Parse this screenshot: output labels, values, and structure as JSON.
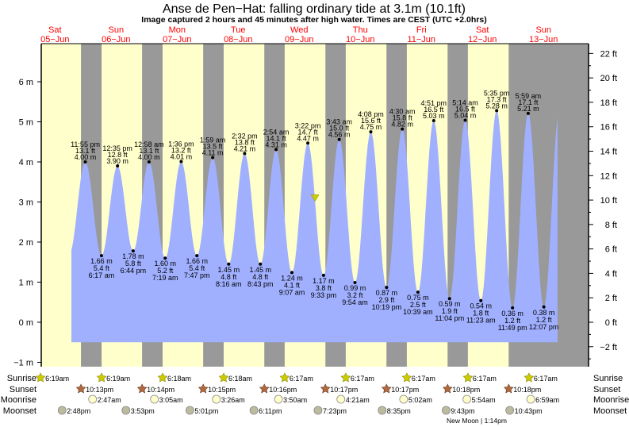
{
  "chart_data": {
    "type": "area",
    "title": "Anse de Pen−Hat: falling  ordinary tide at 3.1m (10.1ft)",
    "subtitle": "Image captured 2 hours and 45 minutes after high water. Times are CEST (UTC +2.0hrs)",
    "x_unit": "hours since Sat 05-Jun 00:00",
    "xlim": [
      6.6,
      221.8
    ],
    "ylim_m": [
      -1.3,
      6.7
    ],
    "left_ticks": [
      {
        "v": -1,
        "label": "−1 m"
      },
      {
        "v": 0,
        "label": "0 m"
      },
      {
        "v": 1,
        "label": "1 m"
      },
      {
        "v": 2,
        "label": "2 m"
      },
      {
        "v": 3,
        "label": "3 m"
      },
      {
        "v": 4,
        "label": "4 m"
      },
      {
        "v": 5,
        "label": "5 m"
      },
      {
        "v": 6,
        "label": "6 m"
      }
    ],
    "right_ticks": [
      {
        "v": -2,
        "label": "−2 ft"
      },
      {
        "v": 0,
        "label": "0 ft"
      },
      {
        "v": 2,
        "label": "2 ft"
      },
      {
        "v": 4,
        "label": "4 ft"
      },
      {
        "v": 6,
        "label": "6 ft"
      },
      {
        "v": 8,
        "label": "8 ft"
      },
      {
        "v": 10,
        "label": "10 ft"
      },
      {
        "v": 12,
        "label": "12 ft"
      },
      {
        "v": 14,
        "label": "14 ft"
      },
      {
        "v": 16,
        "label": "16 ft"
      },
      {
        "v": 18,
        "label": "18 ft"
      },
      {
        "v": 20,
        "label": "20 ft"
      },
      {
        "v": 22,
        "label": "22 ft"
      }
    ],
    "days": [
      {
        "dow": "Sat",
        "date": "05−Jun"
      },
      {
        "dow": "Sun",
        "date": "06−Jun"
      },
      {
        "dow": "Mon",
        "date": "07−Jun"
      },
      {
        "dow": "Tue",
        "date": "08−Jun"
      },
      {
        "dow": "Wed",
        "date": "09−Jun"
      },
      {
        "dow": "Thu",
        "date": "10−Jun"
      },
      {
        "dow": "Fri",
        "date": "11−Jun"
      },
      {
        "dow": "Sat",
        "date": "12−Jun"
      },
      {
        "dow": "Sun",
        "date": "13−Jun"
      }
    ],
    "extremes": [
      {
        "type": "high",
        "t": 23.92,
        "time": "11:55 pm",
        "m": "4.00 m",
        "ft": "13.1 ft",
        "v": 4.0
      },
      {
        "type": "low",
        "t": 30.28,
        "time": "6:17 am",
        "m": "1.66 m",
        "ft": "5.4 ft",
        "v": 1.66
      },
      {
        "type": "high",
        "t": 36.58,
        "time": "12:35 pm",
        "m": "3.90 m",
        "ft": "12.8 ft",
        "v": 3.9
      },
      {
        "type": "low",
        "t": 42.73,
        "time": "6:44 pm",
        "m": "1.78 m",
        "ft": "5.8 ft",
        "v": 1.78
      },
      {
        "type": "high",
        "t": 48.97,
        "time": "12:58 am",
        "m": "4.00 m",
        "ft": "13.1 ft",
        "v": 4.0
      },
      {
        "type": "low",
        "t": 55.32,
        "time": "7:19 am",
        "m": "1.60 m",
        "ft": "5.2 ft",
        "v": 1.6
      },
      {
        "type": "high",
        "t": 61.6,
        "time": "1:36 pm",
        "m": "4.01 m",
        "ft": "13.2 ft",
        "v": 4.01
      },
      {
        "type": "low",
        "t": 67.78,
        "time": "7:47 pm",
        "m": "1.66 m",
        "ft": "5.4 ft",
        "v": 1.66
      },
      {
        "type": "high",
        "t": 73.98,
        "time": "1:59 am",
        "m": "4.11 m",
        "ft": "13.5 ft",
        "v": 4.11
      },
      {
        "type": "low",
        "t": 80.27,
        "time": "8:16 am",
        "m": "1.45 m",
        "ft": "4.8 ft",
        "v": 1.45
      },
      {
        "type": "high",
        "t": 86.53,
        "time": "2:32 pm",
        "m": "4.21 m",
        "ft": "13.8 ft",
        "v": 4.21
      },
      {
        "type": "low",
        "t": 92.72,
        "time": "8:43 pm",
        "m": "1.45 m",
        "ft": "4.8 ft",
        "v": 1.45
      },
      {
        "type": "high",
        "t": 98.9,
        "time": "2:54 am",
        "m": "4.31 m",
        "ft": "14.1 ft",
        "v": 4.31
      },
      {
        "type": "low",
        "t": 105.12,
        "time": "9:07 am",
        "m": "1.24 m",
        "ft": "4.1 ft",
        "v": 1.24
      },
      {
        "type": "high",
        "t": 111.37,
        "time": "3:22 pm",
        "m": "4.47 m",
        "ft": "14.7 ft",
        "v": 4.47
      },
      {
        "type": "low",
        "t": 117.55,
        "time": "9:33 pm",
        "m": "1.17 m",
        "ft": "3.8 ft",
        "v": 1.17
      },
      {
        "type": "high",
        "t": 123.72,
        "time": "3:43 am",
        "m": "4.56 m",
        "ft": "15.0 ft",
        "v": 4.56
      },
      {
        "type": "low",
        "t": 129.9,
        "time": "9:54 am",
        "m": "0.99 m",
        "ft": "3.2 ft",
        "v": 0.99
      },
      {
        "type": "high",
        "t": 136.13,
        "time": "4:08 pm",
        "m": "4.75 m",
        "ft": "15.6 ft",
        "v": 4.75
      },
      {
        "type": "low",
        "t": 142.32,
        "time": "10:19 pm",
        "m": "0.87 m",
        "ft": "2.9 ft",
        "v": 0.87
      },
      {
        "type": "high",
        "t": 148.5,
        "time": "4:30 am",
        "m": "4.82 m",
        "ft": "15.8 ft",
        "v": 4.82
      },
      {
        "type": "low",
        "t": 154.65,
        "time": "10:39 am",
        "m": "0.75 m",
        "ft": "2.5 ft",
        "v": 0.75
      },
      {
        "type": "high",
        "t": 160.85,
        "time": "4:51 pm",
        "m": "5.03 m",
        "ft": "16.5 ft",
        "v": 5.03
      },
      {
        "type": "low",
        "t": 167.07,
        "time": "11:04 pm",
        "m": "0.59 m",
        "ft": "1.9 ft",
        "v": 0.59
      },
      {
        "type": "high",
        "t": 173.23,
        "time": "5:14 am",
        "m": "5.04 m",
        "ft": "16.5 ft",
        "v": 5.04
      },
      {
        "type": "low",
        "t": 179.38,
        "time": "11:23 am",
        "m": "0.54 m",
        "ft": "1.8 ft",
        "v": 0.54
      },
      {
        "type": "high",
        "t": 185.58,
        "time": "5:35 pm",
        "m": "5.28 m",
        "ft": "17.3 ft",
        "v": 5.28
      },
      {
        "type": "low",
        "t": 191.82,
        "time": "11:49 pm",
        "m": "0.36 m",
        "ft": "1.2 ft",
        "v": 0.36
      },
      {
        "type": "high",
        "t": 197.98,
        "time": "5:59 am",
        "m": "5.21 m",
        "ft": "17.1 ft",
        "v": 5.21
      },
      {
        "type": "low",
        "t": 204.12,
        "time": "12:07 pm",
        "m": "0.38 m",
        "ft": "1.2 ft",
        "v": 0.38
      }
    ],
    "data_range_t": [
      18.45,
      209.5
    ],
    "current": {
      "t": 114.2,
      "v": 3.1
    },
    "rows": {
      "sunrise": {
        "label": "Sunrise",
        "events": [
          {
            "t": 6.32,
            "time": "6:19am"
          },
          {
            "t": 30.32,
            "time": "6:19am"
          },
          {
            "t": 54.3,
            "time": "6:18am"
          },
          {
            "t": 78.3,
            "time": "6:18am"
          },
          {
            "t": 102.28,
            "time": "6:17am"
          },
          {
            "t": 126.28,
            "time": "6:17am"
          },
          {
            "t": 150.28,
            "time": "6:17am"
          },
          {
            "t": 174.28,
            "time": "6:17am"
          },
          {
            "t": 198.28,
            "time": "6:17am"
          }
        ]
      },
      "sunset": {
        "label": "Sunset",
        "events": [
          {
            "t": 22.22,
            "time": "10:13pm"
          },
          {
            "t": 46.23,
            "time": "10:14pm"
          },
          {
            "t": 70.25,
            "time": "10:15pm"
          },
          {
            "t": 94.27,
            "time": "10:16pm"
          },
          {
            "t": 118.28,
            "time": "10:17pm"
          },
          {
            "t": 142.28,
            "time": "10:17pm"
          },
          {
            "t": 166.3,
            "time": "10:18pm"
          },
          {
            "t": 190.3,
            "time": "10:18pm"
          }
        ]
      },
      "moonrise": {
        "label": "Moonrise",
        "events": [
          {
            "t": 26.78,
            "time": "2:47am"
          },
          {
            "t": 51.08,
            "time": "3:05am"
          },
          {
            "t": 75.43,
            "time": "3:26am"
          },
          {
            "t": 99.83,
            "time": "3:50am"
          },
          {
            "t": 124.35,
            "time": "4:21am"
          },
          {
            "t": 149.03,
            "time": "5:02am"
          },
          {
            "t": 173.9,
            "time": "5:54am"
          },
          {
            "t": 198.98,
            "time": "6:59am"
          }
        ]
      },
      "moonset": {
        "label": "Moonset",
        "events": [
          {
            "t": 14.8,
            "time": "2:48pm"
          },
          {
            "t": 39.88,
            "time": "3:53pm"
          },
          {
            "t": 65.02,
            "time": "5:01pm"
          },
          {
            "t": 90.18,
            "time": "6:11pm"
          },
          {
            "t": 115.38,
            "time": "7:23pm"
          },
          {
            "t": 140.58,
            "time": "8:35pm"
          },
          {
            "t": 165.72,
            "time": "9:43pm"
          },
          {
            "t": 190.72,
            "time": "10:43pm"
          }
        ]
      }
    },
    "moon_phase": "New Moon | 1:14pm",
    "colors": {
      "day": "#ffffcc",
      "night": "#999999",
      "water": "#a0b0ff",
      "day_label": "#ff0000",
      "sun": "#cccc00",
      "sunset": "#b06a40",
      "moonrise": "#ffffcc",
      "moonset": "#bbbba0"
    }
  }
}
